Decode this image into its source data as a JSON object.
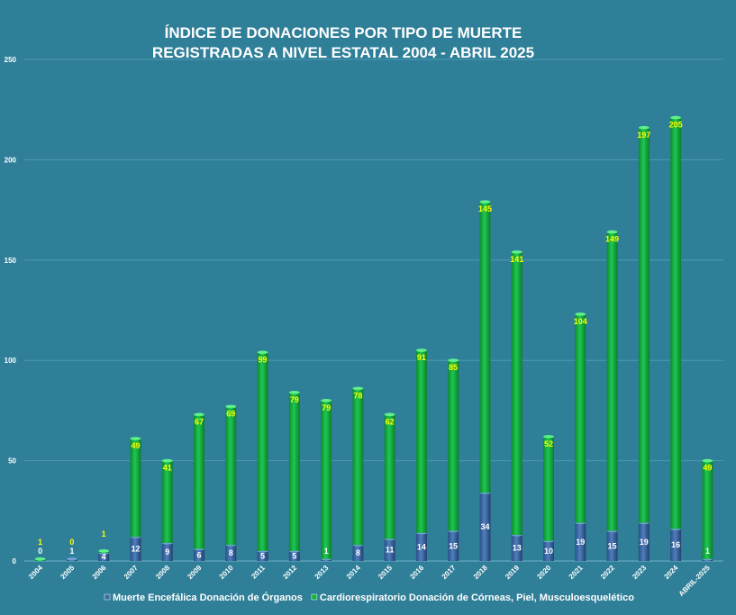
{
  "chart_data": {
    "type": "bar",
    "stacked": true,
    "title_lines": [
      "ÍNDICE DE DONACIONES POR TIPO DE MUERTE",
      "REGISTRADAS A NIVEL ESTATAL 2004 - ABRIL 2025"
    ],
    "xlabel": "",
    "ylabel": "",
    "ylim": [
      0,
      250
    ],
    "yticks": [
      0,
      50,
      100,
      150,
      200,
      250
    ],
    "grid": true,
    "legend_position": "bottom",
    "categories": [
      "2004",
      "2005",
      "2006",
      "2007",
      "2008",
      "2009",
      "2010",
      "2011",
      "2012",
      "2013",
      "2014",
      "2015",
      "2016",
      "2017",
      "2018",
      "2019",
      "2020",
      "2021",
      "2022",
      "2023",
      "2024",
      "ABRIL-2025"
    ],
    "series": [
      {
        "name": "Muerte Encefálica Donación de Órganos",
        "color": "#3a6aa6",
        "values": [
          0,
          1,
          4,
          12,
          9,
          6,
          8,
          5,
          5,
          1,
          8,
          11,
          14,
          15,
          34,
          13,
          10,
          19,
          15,
          19,
          16,
          1
        ]
      },
      {
        "name": "Cardiorespiratorio Donación de Córneas, Piel, Musculoesquelético",
        "color": "#12b040",
        "values": [
          1,
          0,
          1,
          49,
          41,
          67,
          69,
          99,
          79,
          79,
          78,
          62,
          91,
          85,
          145,
          141,
          52,
          104,
          149,
          197,
          205,
          49
        ]
      }
    ]
  }
}
